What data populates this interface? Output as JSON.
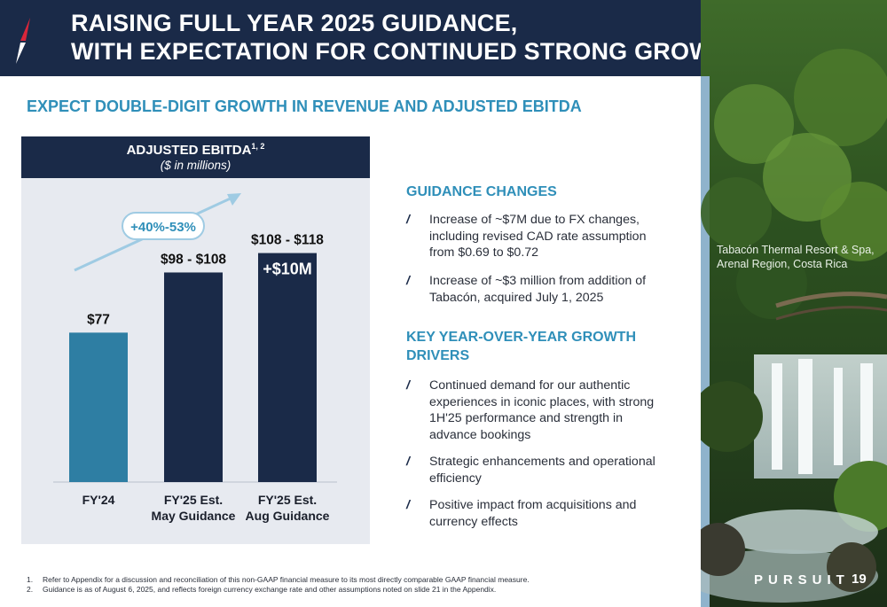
{
  "header": {
    "title_line1": "RAISING FULL YEAR 2025 GUIDANCE,",
    "title_line2": "WITH EXPECTATION FOR CONTINUED STRONG GROWTH"
  },
  "subtitle": "EXPECT DOUBLE-DIGIT GROWTH IN REVENUE AND ADJUSTED EBITDA",
  "chart_header": {
    "title": "ADJUSTED EBITDA",
    "title_superscript": "1, 2",
    "subtitle": "($ in millions)"
  },
  "chart_data": {
    "type": "bar",
    "title": "ADJUSTED EBITDA",
    "categories": [
      "FY'24",
      "FY'25 Est. May Guidance",
      "FY'25 Est. Aug Guidance"
    ],
    "category_labels": [
      [
        "FY'24"
      ],
      [
        "FY'25 Est.",
        "May Guidance"
      ],
      [
        "FY'25 Est.",
        "Aug Guidance"
      ]
    ],
    "values": [
      77,
      108,
      118
    ],
    "data_labels": [
      "$77",
      "$98 - $108",
      "$108 - $118"
    ],
    "ranges": [
      [
        77,
        77
      ],
      [
        98,
        108
      ],
      [
        108,
        118
      ]
    ],
    "bar_colors": [
      "#2e7ea3",
      "#1a2a48",
      "#1a2a48"
    ],
    "inner_label": "+$10M",
    "growth_annotation": "+40%-53%",
    "ylim": [
      0,
      125
    ]
  },
  "guidance_changes": {
    "title": "GUIDANCE CHANGES",
    "items": [
      [
        "Increase of ~$7M due to FX changes,",
        "including revised CAD rate assumption",
        "from $0.69 to $0.72"
      ],
      [
        "Increase of ~$3 million from addition of",
        "Tabacón, acquired July 1, 2025"
      ]
    ]
  },
  "growth_drivers": {
    "title_line1": "KEY YEAR-OVER-YEAR GROWTH",
    "title_line2": "DRIVERS",
    "items": [
      [
        "Continued demand for our authentic",
        "experiences in iconic places, with strong",
        "1H'25 performance and strength in",
        "advance bookings"
      ],
      [
        "Strategic enhancements and operational",
        "efficiency"
      ],
      [
        "Positive impact from acquisitions and",
        "currency effects"
      ]
    ]
  },
  "bullet_mark": "/",
  "photo": {
    "caption_line1": "Tabacón Thermal Resort & Spa,",
    "caption_line2": "Arenal Region, Costa Rica"
  },
  "brand": "PURSUIT",
  "page_number": "19",
  "footnotes": [
    {
      "num": "1.",
      "text": "Refer to Appendix for a discussion and reconciliation of this non-GAAP financial measure to its most directly comparable GAAP financial measure."
    },
    {
      "num": "2.",
      "text": "Guidance is as of August 6, 2025, and reflects foreign currency exchange rate and other assumptions noted on slide 21 in the Appendix."
    }
  ],
  "colors": {
    "navy": "#1a2a48",
    "accent_blue": "#2f8fb9",
    "bar_blue": "#2e7ea3",
    "arrow_light_blue": "#9fcbe3",
    "logo_red": "#d9263a"
  }
}
